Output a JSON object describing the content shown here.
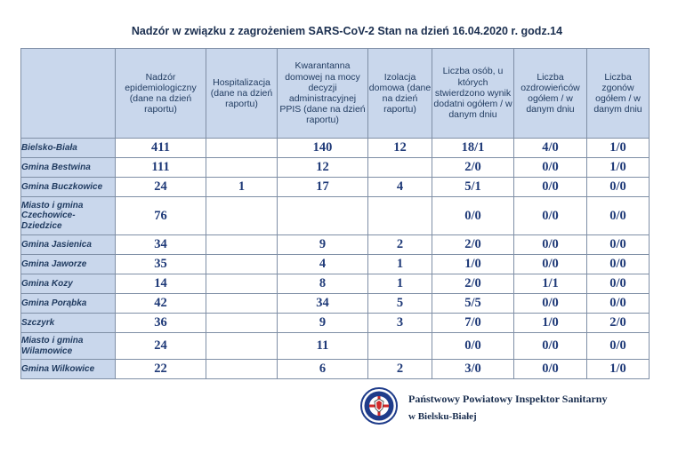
{
  "document": {
    "title": "Nadzór w związku z zagrożeniem SARS-CoV-2   Stan na dzień 16.04.2020 r. godz.14"
  },
  "table": {
    "headers": [
      "Nadzór epidemiologiczny (dane na dzień raportu)",
      "Hospitalizacja (dane na dzień raportu)",
      "Kwarantanna domowej na mocy decyzji administracyjnej PPIS (dane na dzień raportu)",
      "Izolacja domowa (dane na dzień raportu)",
      "Liczba osób, u których stwierdzono wynik dodatni ogółem / w danym dniu",
      "Liczba ozdrowieńców ogółem / w danym dniu",
      "Liczba zgonów ogółem / w danym dniu"
    ],
    "rows": [
      {
        "name": "Bielsko-Biała",
        "values": [
          "411",
          "",
          "140",
          "12",
          "18/1",
          "4/0",
          "1/0"
        ]
      },
      {
        "name": "Gmina Bestwina",
        "values": [
          "111",
          "",
          "12",
          "",
          "2/0",
          "0/0",
          "1/0"
        ]
      },
      {
        "name": "Gmina Buczkowice",
        "values": [
          "24",
          "1",
          "17",
          "4",
          "5/1",
          "0/0",
          "0/0"
        ]
      },
      {
        "name": "Miasto i gmina Czechowice-Dziedzice",
        "values": [
          "76",
          "",
          "",
          "",
          "0/0",
          "0/0",
          "0/0"
        ]
      },
      {
        "name": "Gmina Jasienica",
        "values": [
          "34",
          "",
          "9",
          "2",
          "2/0",
          "0/0",
          "0/0"
        ]
      },
      {
        "name": "Gmina Jaworze",
        "values": [
          "35",
          "",
          "4",
          "1",
          "1/0",
          "0/0",
          "0/0"
        ]
      },
      {
        "name": "Gmina Kozy",
        "values": [
          "14",
          "",
          "8",
          "1",
          "2/0",
          "1/1",
          "0/0"
        ]
      },
      {
        "name": "Gmina Porąbka",
        "values": [
          "42",
          "",
          "34",
          "5",
          "5/5",
          "0/0",
          "0/0"
        ]
      },
      {
        "name": "Szczyrk",
        "values": [
          "36",
          "",
          "9",
          "3",
          "7/0",
          "1/0",
          "2/0"
        ]
      },
      {
        "name": "Miasto i gmina Wilamowice",
        "values": [
          "24",
          "",
          "11",
          "",
          "0/0",
          "0/0",
          "0/0"
        ]
      },
      {
        "name": "Gmina Wilkowice",
        "values": [
          "22",
          "",
          "6",
          "2",
          "3/0",
          "0/0",
          "1/0"
        ]
      }
    ]
  },
  "footer": {
    "inspector": "Państwowy Powiatowy Inspektor Sanitarny",
    "city": "w Bielsku-Białej",
    "seal_icon": "sanepid-eagle-seal-icon",
    "seal_colors": {
      "ring": "#1f3c8a",
      "cross": "#d22a2a"
    }
  }
}
